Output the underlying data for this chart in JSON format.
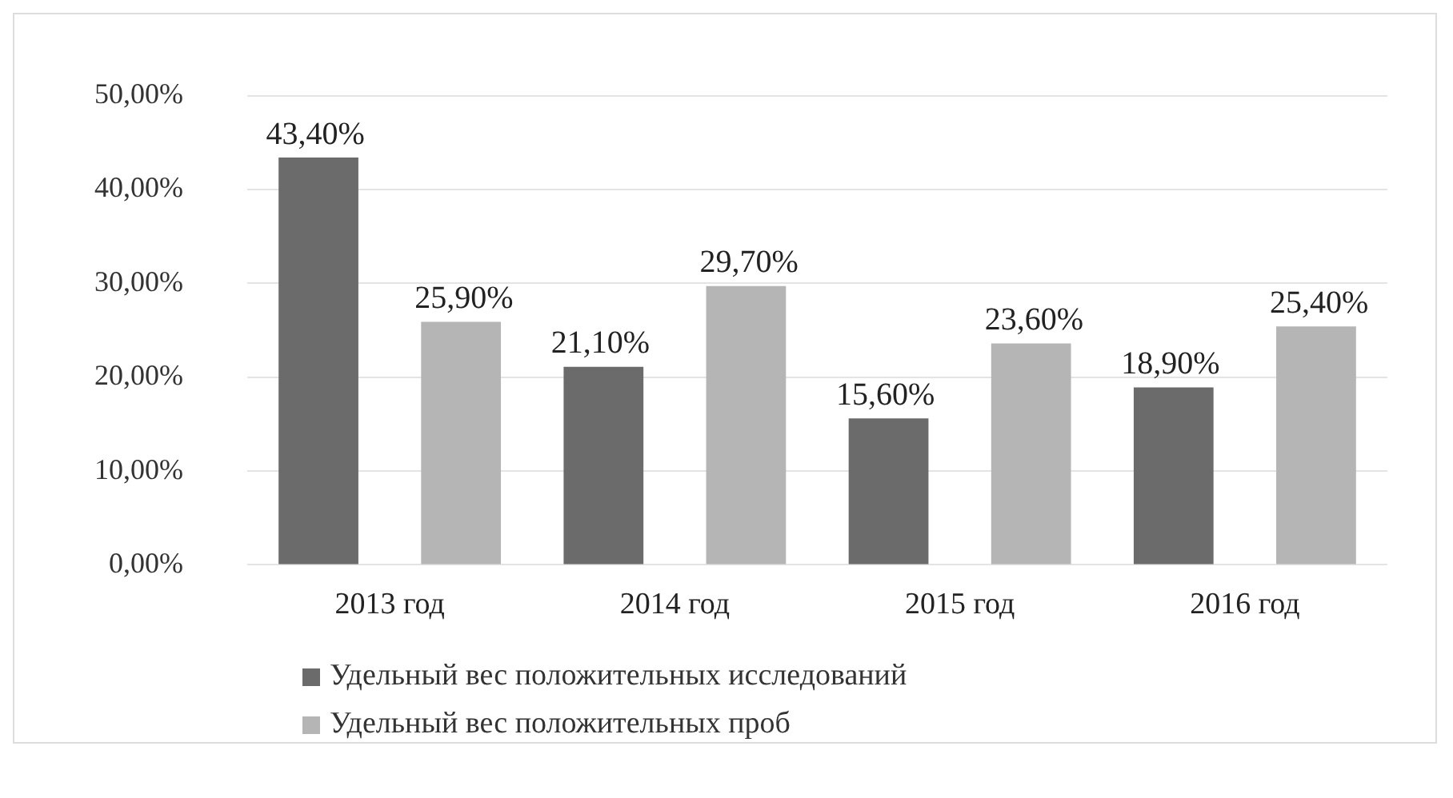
{
  "chart_data": {
    "type": "bar",
    "categories": [
      "2013 год",
      "2014 год",
      "2015 год",
      "2016 год"
    ],
    "series": [
      {
        "name": "Удельный вес положительных исследований",
        "color": "#6b6b6b",
        "values": [
          43.4,
          21.1,
          15.6,
          18.9
        ],
        "value_labels": [
          "43,40%",
          "21,10%",
          "15,60%",
          "18,90%"
        ]
      },
      {
        "name": "Удельный вес положительных проб",
        "color": "#b5b5b5",
        "values": [
          25.9,
          29.7,
          23.6,
          25.4
        ],
        "value_labels": [
          "25,90%",
          "29,70%",
          "23,60%",
          "25,40%"
        ]
      }
    ],
    "ylim": [
      0,
      50
    ],
    "yticks": [
      {
        "value": 0,
        "label": "0,00%"
      },
      {
        "value": 10,
        "label": "10,00%"
      },
      {
        "value": 20,
        "label": "20,00%"
      },
      {
        "value": 30,
        "label": "30,00%"
      },
      {
        "value": 40,
        "label": "40,00%"
      },
      {
        "value": 50,
        "label": "50,00%"
      }
    ],
    "grid": "y",
    "legend": "bottom"
  }
}
